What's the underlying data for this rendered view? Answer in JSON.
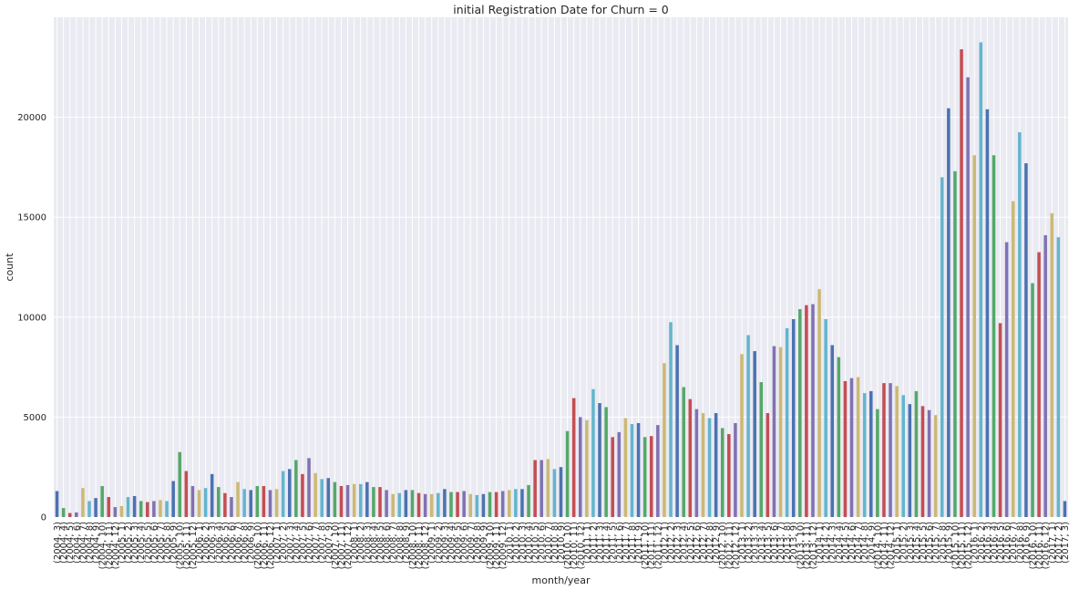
{
  "chart_data": {
    "type": "bar",
    "title": "initial Registration Date for Churn = 0",
    "xlabel": "month/year",
    "ylabel": "count",
    "ylim": [
      0,
      25000
    ],
    "yticks": [
      0,
      5000,
      10000,
      15000,
      20000
    ],
    "grid": true,
    "legend": "none",
    "palette": [
      "#4c72b0",
      "#55a868",
      "#c44e52",
      "#8172b2",
      "#ccb974",
      "#64b5cd"
    ],
    "categories": [
      "(2004, 3)",
      "(2004, 4)",
      "(2004, 5)",
      "(2004, 6)",
      "(2004, 7)",
      "(2004, 8)",
      "(2004, 9)",
      "(2004, 10)",
      "(2004, 11)",
      "(2004, 12)",
      "(2005, 1)",
      "(2005, 2)",
      "(2005, 3)",
      "(2005, 4)",
      "(2005, 5)",
      "(2005, 6)",
      "(2005, 7)",
      "(2005, 8)",
      "(2005, 9)",
      "(2005, 10)",
      "(2005, 11)",
      "(2005, 12)",
      "(2006, 1)",
      "(2006, 2)",
      "(2006, 3)",
      "(2006, 4)",
      "(2006, 5)",
      "(2006, 6)",
      "(2006, 7)",
      "(2006, 8)",
      "(2006, 9)",
      "(2006, 10)",
      "(2006, 11)",
      "(2006, 12)",
      "(2007, 1)",
      "(2007, 2)",
      "(2007, 3)",
      "(2007, 4)",
      "(2007, 5)",
      "(2007, 6)",
      "(2007, 7)",
      "(2007, 8)",
      "(2007, 9)",
      "(2007, 10)",
      "(2007, 11)",
      "(2007, 12)",
      "(2008, 1)",
      "(2008, 2)",
      "(2008, 3)",
      "(2008, 4)",
      "(2008, 5)",
      "(2008, 6)",
      "(2008, 7)",
      "(2008, 8)",
      "(2008, 9)",
      "(2008, 10)",
      "(2008, 11)",
      "(2008, 12)",
      "(2009, 1)",
      "(2009, 2)",
      "(2009, 3)",
      "(2009, 4)",
      "(2009, 5)",
      "(2009, 6)",
      "(2009, 7)",
      "(2009, 8)",
      "(2009, 9)",
      "(2009, 10)",
      "(2009, 11)",
      "(2009, 12)",
      "(2010, 1)",
      "(2010, 2)",
      "(2010, 3)",
      "(2010, 4)",
      "(2010, 5)",
      "(2010, 6)",
      "(2010, 7)",
      "(2010, 8)",
      "(2010, 9)",
      "(2010, 10)",
      "(2010, 11)",
      "(2010, 12)",
      "(2011, 1)",
      "(2011, 2)",
      "(2011, 3)",
      "(2011, 4)",
      "(2011, 5)",
      "(2011, 6)",
      "(2011, 7)",
      "(2011, 8)",
      "(2011, 9)",
      "(2011, 10)",
      "(2011, 11)",
      "(2011, 12)",
      "(2012, 1)",
      "(2012, 2)",
      "(2012, 3)",
      "(2012, 4)",
      "(2012, 5)",
      "(2012, 6)",
      "(2012, 7)",
      "(2012, 8)",
      "(2012, 9)",
      "(2012, 10)",
      "(2012, 11)",
      "(2012, 12)",
      "(2013, 1)",
      "(2013, 2)",
      "(2013, 3)",
      "(2013, 4)",
      "(2013, 5)",
      "(2013, 6)",
      "(2013, 7)",
      "(2013, 8)",
      "(2013, 9)",
      "(2013, 10)",
      "(2013, 11)",
      "(2013, 12)",
      "(2014, 1)",
      "(2014, 2)",
      "(2014, 3)",
      "(2014, 4)",
      "(2014, 5)",
      "(2014, 6)",
      "(2014, 7)",
      "(2014, 8)",
      "(2014, 9)",
      "(2014, 10)",
      "(2014, 11)",
      "(2014, 12)",
      "(2015, 1)",
      "(2015, 2)",
      "(2015, 3)",
      "(2015, 4)",
      "(2015, 5)",
      "(2015, 6)",
      "(2015, 7)",
      "(2015, 8)",
      "(2015, 9)",
      "(2015, 10)",
      "(2015, 11)",
      "(2015, 12)",
      "(2016, 1)",
      "(2016, 2)",
      "(2016, 3)",
      "(2016, 4)",
      "(2016, 5)",
      "(2016, 6)",
      "(2016, 7)",
      "(2016, 8)",
      "(2016, 9)",
      "(2016, 10)",
      "(2016, 11)",
      "(2016, 12)",
      "(2017, 1)",
      "(2017, 2)",
      "(2017, 3)"
    ],
    "values": [
      1300,
      450,
      200,
      230,
      1450,
      800,
      950,
      1550,
      1000,
      500,
      550,
      1000,
      1050,
      800,
      750,
      800,
      850,
      800,
      1800,
      3250,
      2300,
      1550,
      1350,
      1450,
      2150,
      1500,
      1200,
      1000,
      1750,
      1400,
      1350,
      1550,
      1550,
      1350,
      1400,
      2300,
      2400,
      2850,
      2150,
      2950,
      2200,
      1900,
      1950,
      1750,
      1550,
      1600,
      1650,
      1650,
      1750,
      1500,
      1500,
      1350,
      1150,
      1200,
      1350,
      1350,
      1200,
      1150,
      1150,
      1200,
      1400,
      1250,
      1250,
      1300,
      1150,
      1100,
      1150,
      1250,
      1250,
      1300,
      1350,
      1400,
      1400,
      1600,
      2850,
      2850,
      2900,
      2400,
      2500,
      4300,
      5950,
      5000,
      4850,
      6400,
      5700,
      5500,
      4000,
      4250,
      4950,
      4650,
      4700,
      4000,
      4050,
      4600,
      7700,
      9750,
      8600,
      6500,
      5900,
      5400,
      5200,
      4950,
      5200,
      4450,
      4150,
      4700,
      8150,
      9100,
      8300,
      6750,
      5200,
      8550,
      8500,
      9450,
      9900,
      10400,
      10600,
      10650,
      11400,
      9900,
      8600,
      8000,
      6800,
      6950,
      7000,
      6200,
      6300,
      5400,
      6700,
      6700,
      6550,
      6100,
      5650,
      6300,
      5550,
      5350,
      5100,
      17000,
      20450,
      17300,
      23400,
      22000,
      18100,
      23750,
      20400,
      18100,
      9700,
      13750,
      15800,
      19250,
      17700,
      11700,
      13250,
      14100,
      15200,
      14000,
      800
    ]
  }
}
